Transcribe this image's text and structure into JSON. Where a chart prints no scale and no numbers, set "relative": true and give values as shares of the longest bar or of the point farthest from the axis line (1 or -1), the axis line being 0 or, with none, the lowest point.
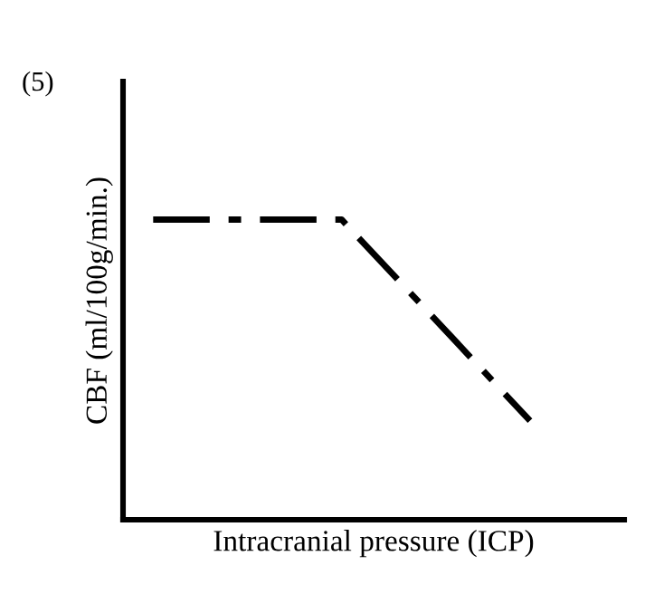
{
  "chart_data": {
    "type": "line",
    "title": "(5)",
    "xlabel": "Intracranial pressure (ICP)",
    "ylabel": "CBF (ml/100g/min.)",
    "relative": true,
    "categories": [
      null,
      null,
      null
    ],
    "series": [
      {
        "color": "#000000",
        "values": [
          1,
          1,
          0.33
        ]
      }
    ],
    "line_style": "dashed",
    "marker": "none",
    "legend": false
  }
}
